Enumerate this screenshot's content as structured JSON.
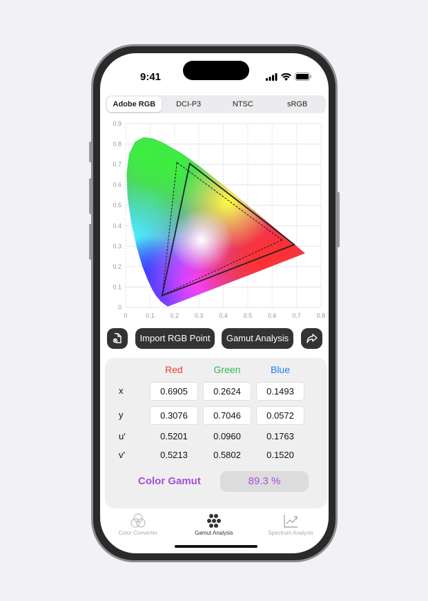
{
  "status": {
    "time": "9:41"
  },
  "segments": {
    "items": [
      "Adobe RGB",
      "DCI-P3",
      "NTSC",
      "sRGB"
    ],
    "selected": "Adobe RGB"
  },
  "chart_data": {
    "type": "scatter",
    "title": "",
    "x_ticks": [
      "0",
      "0.1",
      "0.2",
      "0.3",
      "0.4",
      "0.5",
      "0.6",
      "0.7",
      "0.8"
    ],
    "y_ticks": [
      "0",
      "0.1",
      "0.2",
      "0.3",
      "0.4",
      "0.5",
      "0.6",
      "0.7",
      "0.8",
      "0.9"
    ],
    "xlim": [
      0,
      0.8
    ],
    "ylim": [
      0,
      0.9
    ],
    "grid": true,
    "series": [
      {
        "style": "solid",
        "points": [
          [
            0.6905,
            0.3076
          ],
          [
            0.2624,
            0.7046
          ],
          [
            0.1493,
            0.0572
          ]
        ]
      },
      {
        "style": "dashed",
        "points": [
          [
            0.64,
            0.33
          ],
          [
            0.21,
            0.71
          ],
          [
            0.15,
            0.06
          ]
        ]
      }
    ]
  },
  "actions": {
    "import_label": "Import RGB Point",
    "gamut_label": "Gamut Analysis",
    "file_icon": "doc-icon",
    "share_icon": "share-icon"
  },
  "table": {
    "headers": [
      "Red",
      "Green",
      "Blue"
    ],
    "header_colors": [
      "#f23b30",
      "#2dbb4a",
      "#1a7cf5"
    ],
    "rows": [
      {
        "label": "x",
        "values": [
          "0.6905",
          "0.2624",
          "0.1493"
        ]
      },
      {
        "label": "y",
        "values": [
          "0.3076",
          "0.7046",
          "0.0572"
        ]
      },
      {
        "label": "u'",
        "values": [
          "0.5201",
          "0.0960",
          "0.1763"
        ]
      },
      {
        "label": "v'",
        "values": [
          "0.5213",
          "0.5802",
          "0.1520"
        ]
      }
    ],
    "gamut_label": "Color Gamut",
    "gamut_value": "89.3 %"
  },
  "tabs": [
    {
      "label": "Color Converter"
    },
    {
      "label": "Gamut Analysis",
      "selected": true
    },
    {
      "label": "Spectrum Analysis"
    }
  ]
}
